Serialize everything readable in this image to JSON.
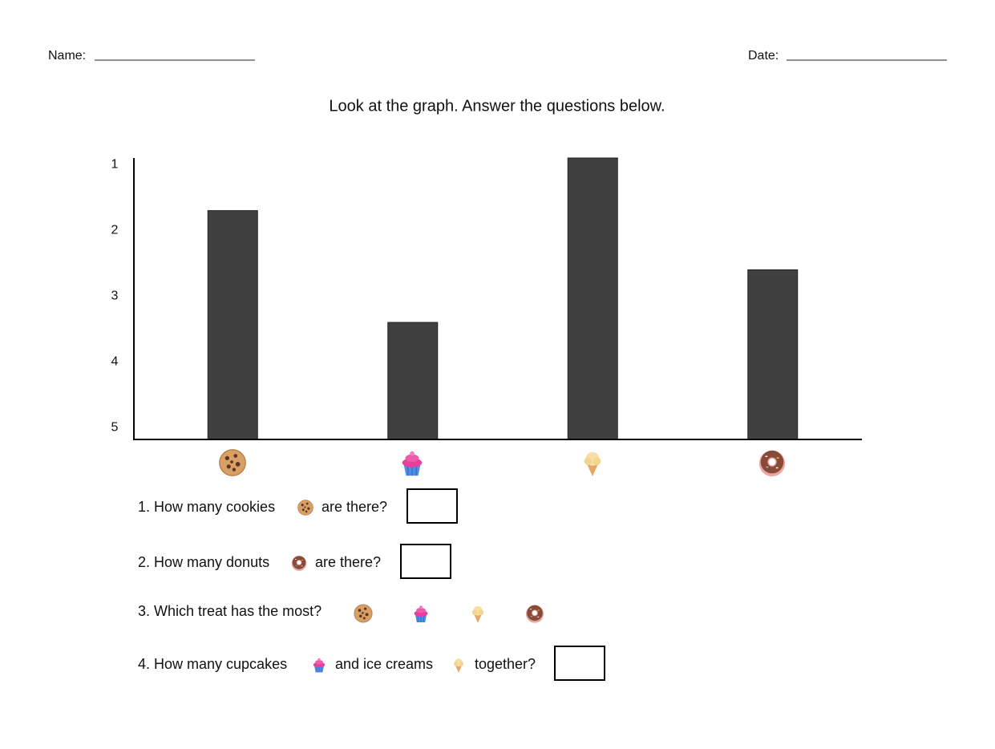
{
  "header": {
    "name_label": "Name:",
    "date_label": "Date:"
  },
  "instructions": "Look at the graph. Answer the questions below.",
  "chart_data": {
    "type": "bar",
    "categories": [
      null,
      null,
      null,
      null
    ],
    "values": [
      1.7,
      3.4,
      0.9,
      2.6
    ],
    "color": "#404040",
    "ylim": [
      5.18,
      0.9
    ],
    "yticks": [
      1,
      2,
      3,
      4,
      5
    ]
  },
  "questions": [
    {
      "parts": [
        "1. How many cookies",
        "are there?"
      ]
    },
    {
      "parts": [
        "2. How many donuts",
        "are there?"
      ]
    },
    {
      "parts": [
        "3. Which treat has the most?"
      ]
    },
    {
      "parts": [
        "4. How many cupcakes",
        "and ice creams",
        "together?"
      ]
    }
  ]
}
